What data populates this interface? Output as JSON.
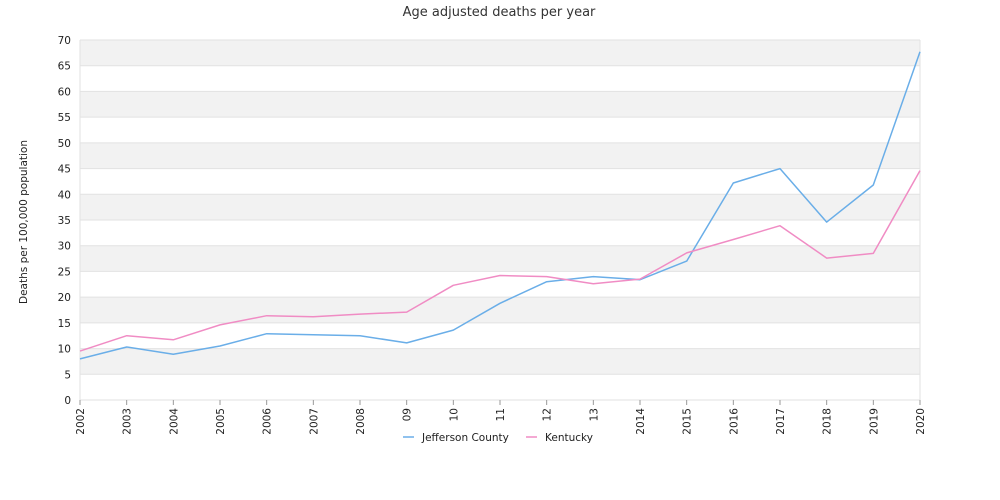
{
  "chart_data": {
    "type": "line",
    "title": "Age adjusted deaths per year",
    "xlabel": "",
    "ylabel": "Deaths per 100,000 population",
    "ylim": [
      0,
      70
    ],
    "y_ticks": [
      "0",
      "5",
      "10",
      "15",
      "20",
      "25",
      "30",
      "35",
      "40",
      "45",
      "50",
      "55",
      "60",
      "65",
      "70"
    ],
    "categories": [
      "2002",
      "2003",
      "2004",
      "2005",
      "2006",
      "2007",
      "2008",
      "09",
      "10",
      "11",
      "12",
      "13",
      "2014",
      "2015",
      "2016",
      "2017",
      "2018",
      "2019",
      "2020"
    ],
    "grid": "horizontal alternating bands",
    "legend_position": "bottom-center",
    "series": [
      {
        "name": "Jefferson County",
        "color": "#6aaee8",
        "values": [
          8.0,
          10.3,
          8.9,
          10.5,
          12.9,
          12.7,
          12.5,
          11.1,
          13.6,
          18.8,
          23.0,
          24.0,
          23.4,
          27.0,
          42.2,
          45.0,
          34.6,
          41.8,
          67.7
        ]
      },
      {
        "name": "Kentucky",
        "color": "#f08cc4",
        "values": [
          9.5,
          12.5,
          11.7,
          14.6,
          16.4,
          16.2,
          16.7,
          17.1,
          22.3,
          24.2,
          24.0,
          22.6,
          23.5,
          28.6,
          31.2,
          33.9,
          27.6,
          28.5,
          44.6
        ]
      }
    ]
  }
}
